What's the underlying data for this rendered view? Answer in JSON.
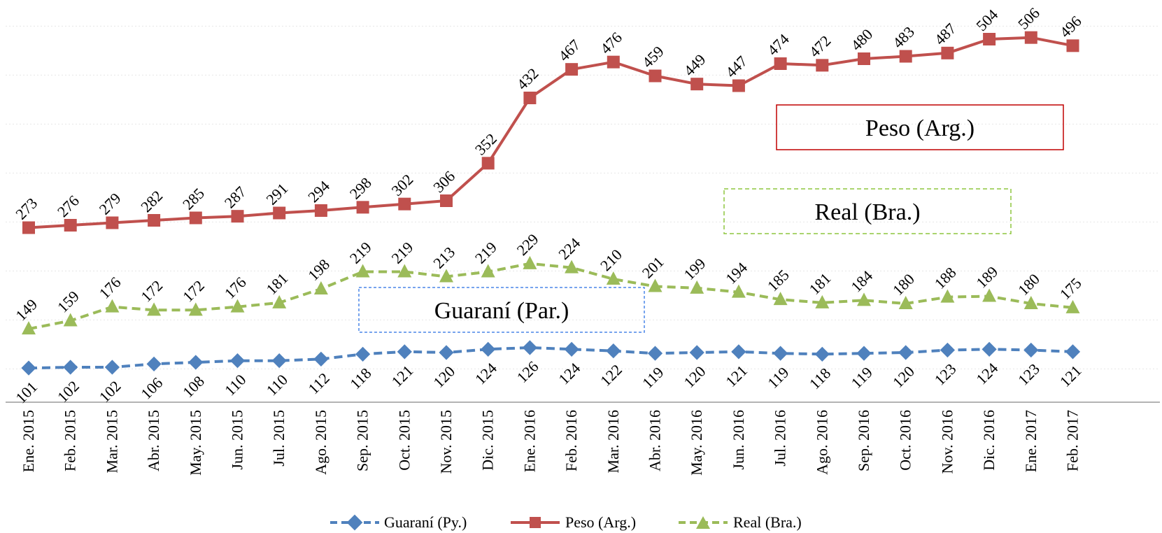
{
  "chart_data": {
    "type": "line",
    "title": "",
    "xlabel": "",
    "ylabel": "",
    "ylim": [
      60,
      540
    ],
    "grid": true,
    "legend_position": "bottom",
    "categories": [
      "Ene. 2015",
      "Feb. 2015",
      "Mar. 2015",
      "Abr. 2015",
      "May. 2015",
      "Jun. 2015",
      "Jul. 2015",
      "Ago. 2015",
      "Sep. 2015",
      "Oct. 2015",
      "Nov. 2015",
      "Dic. 2015",
      "Ene. 2016",
      "Feb. 2016",
      "Mar. 2016",
      "Abr. 2016",
      "May. 2016",
      "Jun. 2016",
      "Jul. 2016",
      "Ago. 2016",
      "Sep. 2016",
      "Oct. 2016",
      "Nov. 2016",
      "Dic. 2016",
      "Ene. 2017",
      "Feb. 2017"
    ],
    "series": [
      {
        "name": "Guaraní (Py.)",
        "color": "#4f81bd",
        "marker": "diamond",
        "line": "dashed",
        "label_position": "below",
        "values": [
          101,
          102,
          102,
          106,
          108,
          110,
          110,
          112,
          118,
          121,
          120,
          124,
          126,
          124,
          122,
          119,
          120,
          121,
          119,
          118,
          119,
          120,
          123,
          124,
          123,
          121
        ]
      },
      {
        "name": "Peso (Arg.)",
        "color": "#c0504d",
        "marker": "square",
        "line": "solid",
        "label_position": "above",
        "values": [
          273,
          276,
          279,
          282,
          285,
          287,
          291,
          294,
          298,
          302,
          306,
          352,
          432,
          467,
          476,
          459,
          449,
          447,
          474,
          472,
          480,
          483,
          487,
          504,
          506,
          496
        ]
      },
      {
        "name": "Real (Bra.)",
        "color": "#9bbb59",
        "marker": "triangle",
        "line": "dashed",
        "label_position": "above",
        "values": [
          149,
          159,
          176,
          172,
          172,
          176,
          181,
          198,
          219,
          219,
          213,
          219,
          229,
          224,
          210,
          201,
          199,
          194,
          185,
          181,
          184,
          180,
          188,
          189,
          180,
          175
        ]
      }
    ],
    "annotations": [
      {
        "text": "Peso (Arg.)",
        "color": "#c00000",
        "border": "solid"
      },
      {
        "text": "Real (Bra.)",
        "color": "#8dc63f",
        "border": "dashed"
      },
      {
        "text": "Guaraní (Par.)",
        "color": "#4a86e8",
        "border": "dashed"
      }
    ]
  }
}
